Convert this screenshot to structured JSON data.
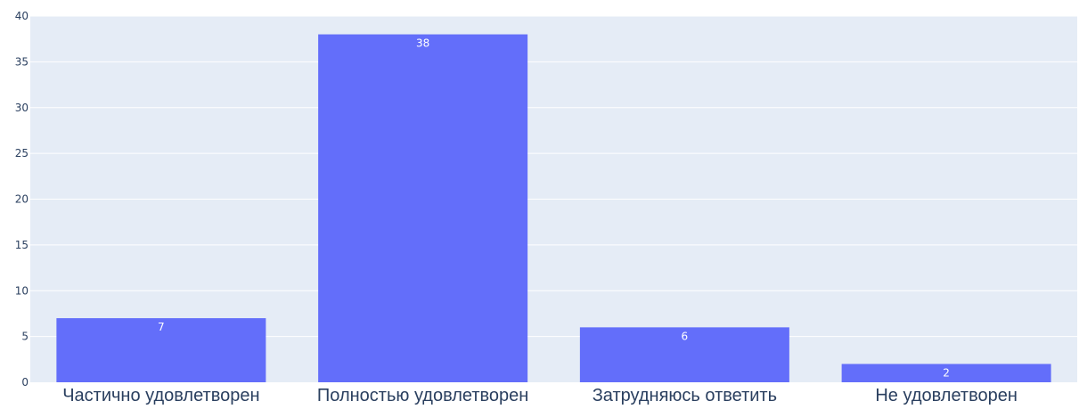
{
  "chart_data": {
    "type": "bar",
    "categories": [
      "Частично удовлетворен",
      "Полностью удовлетворен",
      "Затрудняюсь ответить",
      "Не удовлетворен"
    ],
    "values": [
      7,
      38,
      6,
      2
    ],
    "data_labels": [
      "7",
      "38",
      "6",
      "2"
    ],
    "title": "",
    "xlabel": "",
    "ylabel": "",
    "ylim": [
      0,
      40
    ],
    "yticks": [
      0,
      5,
      10,
      15,
      20,
      25,
      30,
      35,
      40
    ],
    "grid": true,
    "legend": "none",
    "colors": {
      "bar": "#636efa",
      "plot_bg": "#e5ecf6",
      "grid": "#ffffff",
      "text": "#2a3f5f",
      "data_label": "#ffffff"
    }
  }
}
